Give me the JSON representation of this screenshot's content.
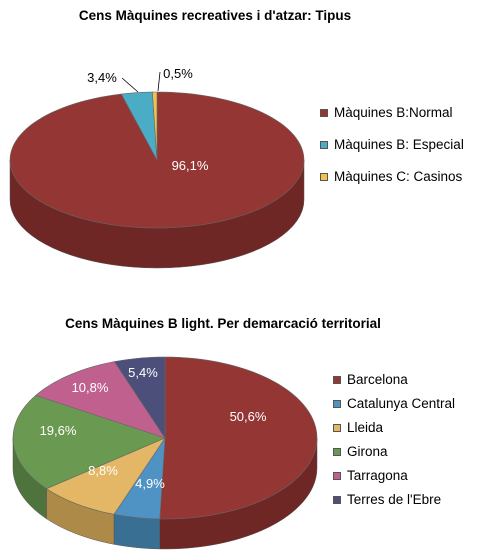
{
  "chart_data": [
    {
      "type": "pie",
      "title": "Cens Màquines recreatives i d'atzar: Tipus",
      "categories": [
        "Màquines B:Normal",
        "Màquines B: Especial",
        "Màquines C: Casinos"
      ],
      "values": [
        96.1,
        3.4,
        0.5
      ],
      "data_labels": [
        "96,1%",
        "3,4%",
        "0,5%"
      ],
      "colors": [
        "#943634",
        "#4bacc6",
        "#f2c14e"
      ],
      "side_colors": [
        "#6e2725",
        "#357f94",
        "#b8903a"
      ],
      "legend_position": "right",
      "style": "3d"
    },
    {
      "type": "pie",
      "title": "Cens Màquines B light. Per demarcació territorial",
      "categories": [
        "Barcelona",
        "Catalunya Central",
        "Lleida",
        "Girona",
        "Tarragona",
        "Terres de l'Ebre"
      ],
      "values": [
        50.6,
        4.9,
        8.8,
        19.6,
        10.8,
        5.4
      ],
      "data_labels": [
        "50,6%",
        "4,9%",
        "8,8%",
        "19,6%",
        "10,8%",
        "5,4%"
      ],
      "colors": [
        "#943634",
        "#4f93c4",
        "#e3b765",
        "#6a9a52",
        "#c0608f",
        "#4b4f7a"
      ],
      "side_colors": [
        "#6e2725",
        "#3a6f94",
        "#ad8a48",
        "#4e733c",
        "#91466c",
        "#363a5b"
      ],
      "legend_position": "right",
      "style": "3d"
    }
  ]
}
